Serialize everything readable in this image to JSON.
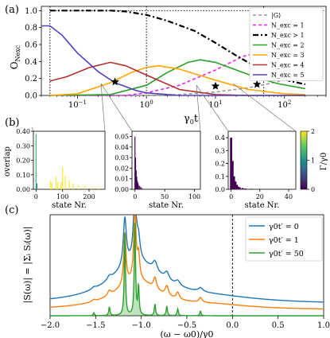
{
  "panels": {
    "a": "(a)",
    "b": "(b)",
    "c": "(c)"
  },
  "chart_data": [
    {
      "panel": "(a)",
      "type": "line",
      "xlabel": "γ0t",
      "ylabel": "O_Nexc",
      "xscale": "log",
      "xlim": [
        0.03,
        400
      ],
      "ylim": [
        0,
        1.05
      ],
      "x_ticks": [
        "10^-1",
        "10^0",
        "10^1",
        "10^2"
      ],
      "y_ticks": [
        "0.0",
        "0.2",
        "0.4",
        "0.6",
        "0.8",
        "1.0"
      ],
      "grid": false,
      "legend_position": "right",
      "vertical_markers_t": [
        0.04,
        1.0,
        50.0
      ],
      "star_markers_t": [
        0.35,
        10.0,
        40.0
      ],
      "series": [
        {
          "name": "|G⟩",
          "color": "#999999",
          "dash": "dashed",
          "points": [
            [
              0.04,
              0.0
            ],
            [
              0.3,
              0.0
            ],
            [
              1.0,
              0.0
            ],
            [
              3.0,
              0.01
            ],
            [
              10.0,
              0.04
            ],
            [
              30.0,
              0.09
            ],
            [
              60.0,
              0.14
            ],
            [
              120.0,
              0.2
            ],
            [
              200.0,
              0.25
            ]
          ]
        },
        {
          "name": "N_exc = 1",
          "color": "#ee22ee",
          "dash": "dashed",
          "points": [
            [
              0.04,
              0.0
            ],
            [
              0.5,
              0.0
            ],
            [
              1.0,
              0.03
            ],
            [
              3.0,
              0.12
            ],
            [
              10.0,
              0.3
            ],
            [
              25.0,
              0.46
            ],
            [
              40.0,
              0.5
            ],
            [
              60.0,
              0.49
            ],
            [
              100.0,
              0.43
            ],
            [
              150.0,
              0.37
            ],
            [
              200.0,
              0.33
            ]
          ]
        },
        {
          "name": "N_exc > 1",
          "color": "#000000",
          "dash": "dashdot",
          "points": [
            [
              0.04,
              1.0
            ],
            [
              0.3,
              1.0
            ],
            [
              0.5,
              0.99
            ],
            [
              1.0,
              0.95
            ],
            [
              2.0,
              0.88
            ],
            [
              5.0,
              0.76
            ],
            [
              10.0,
              0.62
            ],
            [
              20.0,
              0.47
            ],
            [
              40.0,
              0.33
            ],
            [
              70.0,
              0.24
            ],
            [
              120.0,
              0.17
            ],
            [
              200.0,
              0.13
            ]
          ]
        },
        {
          "name": "N_exc = 2",
          "color": "#2ca02c",
          "dash": "solid",
          "points": [
            [
              0.04,
              0.0
            ],
            [
              0.3,
              0.01
            ],
            [
              1.0,
              0.12
            ],
            [
              2.0,
              0.27
            ],
            [
              4.0,
              0.39
            ],
            [
              6.0,
              0.42
            ],
            [
              10.0,
              0.39
            ],
            [
              20.0,
              0.3
            ],
            [
              40.0,
              0.21
            ],
            [
              80.0,
              0.14
            ],
            [
              200.0,
              0.08
            ]
          ]
        },
        {
          "name": "N_exc = 3",
          "color": "#ffa500",
          "dash": "solid",
          "points": [
            [
              0.04,
              0.0
            ],
            [
              0.1,
              0.02
            ],
            [
              0.3,
              0.15
            ],
            [
              0.6,
              0.27
            ],
            [
              1.0,
              0.33
            ],
            [
              1.5,
              0.35
            ],
            [
              3.0,
              0.31
            ],
            [
              10.0,
              0.18
            ],
            [
              30.0,
              0.07
            ],
            [
              100.0,
              0.02
            ],
            [
              200.0,
              0.01
            ]
          ]
        },
        {
          "name": "N_exc = 4",
          "color": "#b03030",
          "dash": "solid",
          "points": [
            [
              0.04,
              0.17
            ],
            [
              0.07,
              0.22
            ],
            [
              0.15,
              0.33
            ],
            [
              0.3,
              0.39
            ],
            [
              0.5,
              0.35
            ],
            [
              1.0,
              0.24
            ],
            [
              3.0,
              0.07
            ],
            [
              10.0,
              0.01
            ],
            [
              30.0,
              0.0
            ],
            [
              200.0,
              0.0
            ]
          ]
        },
        {
          "name": "N_exc = 5",
          "color": "#5040c0",
          "dash": "solid",
          "points": [
            [
              0.03,
              0.82
            ],
            [
              0.04,
              0.82
            ],
            [
              0.06,
              0.71
            ],
            [
              0.1,
              0.5
            ],
            [
              0.2,
              0.28
            ],
            [
              0.35,
              0.15
            ],
            [
              0.7,
              0.06
            ],
            [
              1.0,
              0.03
            ],
            [
              3.0,
              0.0
            ],
            [
              200.0,
              0.0
            ]
          ]
        }
      ]
    },
    {
      "panel": "(b)",
      "type": "bar",
      "xlabel": "state Nr.",
      "ylabel": "overlap",
      "subplots": [
        {
          "xlim": [
            -10,
            260
          ],
          "ylim": [
            0,
            0.4
          ],
          "x_ticks": [
            "0",
            "100",
            "200"
          ],
          "y_ticks": [
            "0.00",
            "0.10",
            "0.20",
            "0.30",
            "0.40"
          ],
          "bars": [
            [
              0,
              0.38,
              "#35b779"
            ],
            [
              3,
              0.04,
              "#2c728e"
            ],
            [
              55,
              0.06,
              "#fde725"
            ],
            [
              60,
              0.045,
              "#fde725"
            ],
            [
              75,
              0.09,
              "#fde725"
            ],
            [
              82,
              0.05,
              "#fde725"
            ],
            [
              95,
              0.05,
              "#fde725"
            ],
            [
              100,
              0.15,
              "#fde725"
            ],
            [
              110,
              0.09,
              "#fde725"
            ],
            [
              125,
              0.06,
              "#fde725"
            ],
            [
              140,
              0.04,
              "#fde725"
            ],
            [
              160,
              0.03,
              "#fde725"
            ],
            [
              185,
              0.025,
              "#fde725"
            ],
            [
              210,
              0.015,
              "#fde725"
            ],
            [
              235,
              0.01,
              "#fde725"
            ]
          ]
        },
        {
          "xlim": [
            -5,
            110
          ],
          "ylim": [
            0,
            0.055
          ],
          "x_ticks": [
            "0",
            "50",
            "100"
          ],
          "y_ticks": [
            "0.00",
            "0.01",
            "0.02",
            "0.03",
            "0.04",
            "0.05"
          ],
          "bars": [
            [
              0,
              0.05,
              "#440154"
            ],
            [
              1,
              0.03,
              "#440154"
            ],
            [
              2,
              0.018,
              "#440154"
            ],
            [
              3,
              0.012,
              "#440154"
            ],
            [
              4,
              0.008,
              "#440154"
            ],
            [
              5,
              0.006,
              "#440154"
            ],
            [
              6,
              0.004,
              "#440154"
            ],
            [
              8,
              0.003,
              "#440154"
            ],
            [
              10,
              0.002,
              "#440154"
            ],
            [
              12,
              0.001,
              "#440154"
            ]
          ]
        },
        {
          "xlim": [
            -2,
            45
          ],
          "ylim": [
            0,
            0.45
          ],
          "x_ticks": [
            "0",
            "20",
            "40"
          ],
          "y_ticks": [
            "0.0",
            "0.1",
            "0.2",
            "0.3",
            "0.4"
          ],
          "bars": [
            [
              0,
              0.4,
              "#440154"
            ],
            [
              1,
              0.22,
              "#440154"
            ],
            [
              2,
              0.1,
              "#440154"
            ],
            [
              3,
              0.06,
              "#440154"
            ],
            [
              4,
              0.035,
              "#440154"
            ],
            [
              5,
              0.02,
              "#440154"
            ],
            [
              6,
              0.015,
              "#440154"
            ],
            [
              8,
              0.01,
              "#440154"
            ],
            [
              10,
              0.006,
              "#440154"
            ],
            [
              14,
              0.004,
              "#440154"
            ],
            [
              20,
              0.003,
              "#440154"
            ]
          ]
        }
      ],
      "colorbar": {
        "label": "Γ/γ0",
        "range": [
          0,
          2
        ],
        "ticks": [
          "0",
          "1",
          "2"
        ]
      }
    },
    {
      "panel": "(c)",
      "type": "line",
      "xlabel": "(ω − ω0)/γ0",
      "ylabel": "|S(ω)| = |Σᵢ Sᵢ(ω)|",
      "xlim": [
        -2.0,
        1.0
      ],
      "ylim": [
        0,
        1.05
      ],
      "x_ticks": [
        "−2.0",
        "−1.5",
        "−1.0",
        "−0.5",
        "0.0",
        "0.5",
        "1.0"
      ],
      "legend_position": "top-right",
      "vertical_marker_x": 0.0,
      "series": [
        {
          "name": "γ0t′ = 0",
          "color": "#1f77b4",
          "baseline": 0.12,
          "peaks": [
            [
              -1.52,
              0.02,
              0.03
            ],
            [
              -1.35,
              0.04,
              0.03
            ],
            [
              -1.18,
              0.5,
              0.02
            ],
            [
              -1.07,
              0.65,
              0.02
            ],
            [
              -1.03,
              0.2,
              0.02
            ],
            [
              -0.85,
              0.1,
              0.03
            ],
            [
              -0.72,
              0.08,
              0.03
            ],
            [
              -0.6,
              0.05,
              0.03
            ],
            [
              -0.35,
              0.04,
              0.03
            ]
          ],
          "broad": [
            [
              -1.05,
              0.42,
              0.35
            ],
            [
              -0.2,
              0.05,
              0.6
            ]
          ]
        },
        {
          "name": "γ0t′ = 1",
          "color": "#ff7f0e",
          "baseline": 0.06,
          "peaks": [
            [
              -1.52,
              0.02,
              0.02
            ],
            [
              -1.35,
              0.05,
              0.02
            ],
            [
              -1.18,
              0.55,
              0.015
            ],
            [
              -1.07,
              0.75,
              0.015
            ],
            [
              -1.03,
              0.25,
              0.015
            ],
            [
              -0.85,
              0.12,
              0.02
            ],
            [
              -0.72,
              0.1,
              0.02
            ],
            [
              -0.6,
              0.07,
              0.02
            ],
            [
              -0.35,
              0.05,
              0.02
            ]
          ],
          "broad": [
            [
              -1.05,
              0.3,
              0.3
            ],
            [
              -0.2,
              0.04,
              0.5
            ]
          ]
        },
        {
          "name": "γ0t′ = 50",
          "color": "#2ca02c",
          "baseline": 0.0,
          "fill": true,
          "peaks": [
            [
              -1.52,
              0.03,
              0.008
            ],
            [
              -1.35,
              0.09,
              0.008
            ],
            [
              -1.18,
              0.85,
              0.008
            ],
            [
              -1.07,
              1.0,
              0.008
            ],
            [
              -1.03,
              0.3,
              0.008
            ],
            [
              -0.85,
              0.12,
              0.008
            ],
            [
              -0.72,
              0.1,
              0.008
            ],
            [
              -0.6,
              0.07,
              0.008
            ],
            [
              -0.35,
              0.05,
              0.008
            ]
          ],
          "broad": []
        }
      ]
    }
  ]
}
